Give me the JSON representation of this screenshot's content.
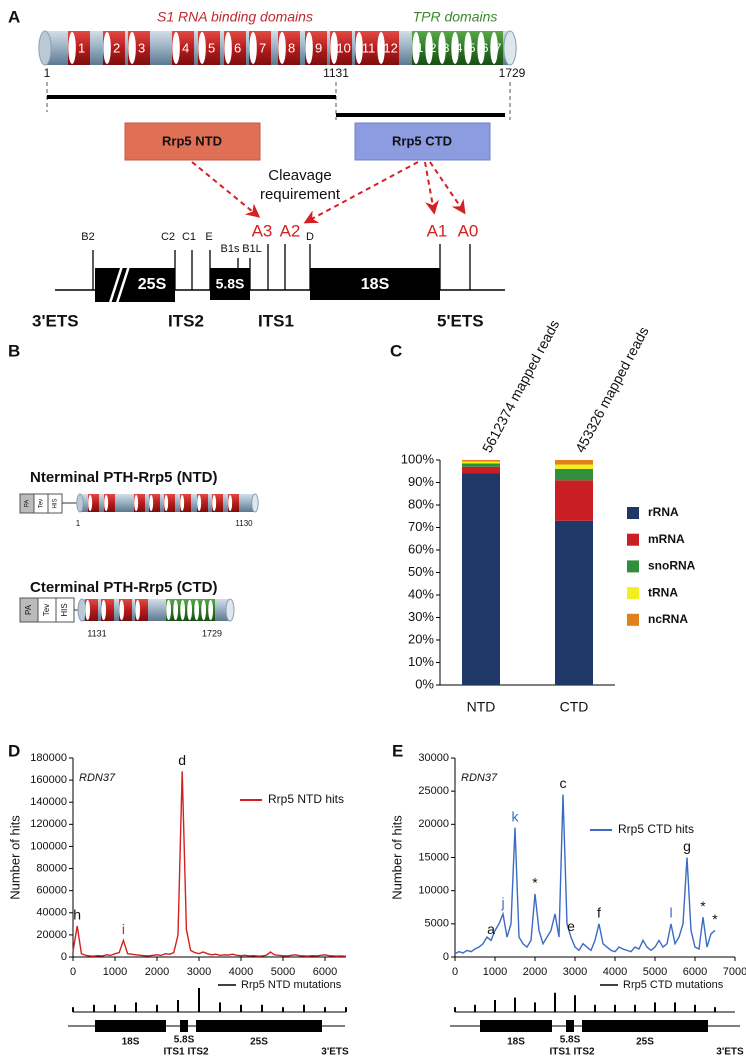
{
  "panel_labels": [
    "A",
    "B",
    "C",
    "D",
    "E"
  ],
  "domain_diagram": {
    "s1_title": "S1 RNA binding domains",
    "tpr_title": "TPR domains",
    "s1_numbers": [
      "1",
      "2",
      "3",
      "4",
      "5",
      "6",
      "7",
      "8",
      "9",
      "10",
      "11",
      "12"
    ],
    "tpr_numbers": [
      "1",
      "2",
      "3",
      "4",
      "5",
      "6",
      "7"
    ],
    "positions": [
      "1",
      "1131",
      "1729"
    ]
  },
  "cleavage": {
    "ntd_box": "Rrp5 NTD",
    "ctd_box": "Rrp5 CTD",
    "requirement": [
      "Cleavage",
      "requirement"
    ],
    "sites": [
      "A3",
      "A2",
      "A1",
      "A0"
    ]
  },
  "rrna_map": {
    "sites": [
      "B2",
      "C2",
      "C1",
      "E",
      "B1s",
      "B1L",
      "D"
    ],
    "blocks": [
      "25S",
      "5.8S",
      "18S"
    ],
    "regions": [
      "3'ETS",
      "ITS2",
      "ITS1",
      "5'ETS"
    ]
  },
  "constructs": {
    "ntd_title": "Nterminal PTH-Rrp5 (NTD)",
    "ctd_title": "Cterminal PTH-Rrp5 (CTD)",
    "tags": [
      "PA",
      "Tev",
      "HIS"
    ],
    "ntd_range": [
      "1",
      "1130"
    ],
    "ctd_range": [
      "1131",
      "1729"
    ]
  },
  "chart_data": [
    {
      "type": "bar",
      "stacked": true,
      "categories": [
        "NTD",
        "CTD"
      ],
      "category_notes": [
        "5612374 mapped reads",
        "453326 mapped reads"
      ],
      "series": [
        {
          "name": "rRNA",
          "color": "#1f3868",
          "values": [
            94,
            73
          ]
        },
        {
          "name": "mRNA",
          "color": "#c81e24",
          "values": [
            3,
            18
          ]
        },
        {
          "name": "snoRNA",
          "color": "#2f8f3c",
          "values": [
            1.5,
            5
          ]
        },
        {
          "name": "tRNA",
          "color": "#f0f020",
          "values": [
            0.8,
            2
          ]
        },
        {
          "name": "ncRNA",
          "color": "#e2801f",
          "values": [
            0.7,
            2
          ]
        }
      ],
      "ylim": [
        0,
        100
      ],
      "yticks": [
        {
          "value": 0,
          "label": "0%"
        },
        {
          "value": 10,
          "label": "10%"
        },
        {
          "value": 20,
          "label": "20%"
        },
        {
          "value": 30,
          "label": "30%"
        },
        {
          "value": 40,
          "label": "40%"
        },
        {
          "value": 50,
          "label": "50%"
        },
        {
          "value": 60,
          "label": "60%"
        },
        {
          "value": 70,
          "label": "70%"
        },
        {
          "value": 80,
          "label": "80%"
        },
        {
          "value": 90,
          "label": "90%"
        },
        {
          "value": 100,
          "label": "100%"
        }
      ]
    },
    {
      "type": "line",
      "subtitle": "RDN37",
      "y_label": "Number of hits",
      "x": [
        0,
        100,
        200,
        300,
        400,
        500,
        600,
        700,
        800,
        900,
        1000,
        1100,
        1200,
        1300,
        1400,
        1500,
        1600,
        1700,
        1800,
        1900,
        2000,
        2100,
        2200,
        2300,
        2400,
        2500,
        2600,
        2700,
        2800,
        2900,
        3000,
        3100,
        3200,
        3300,
        3400,
        3500,
        3600,
        3700,
        3800,
        3900,
        4000,
        4100,
        4200,
        4300,
        4400,
        4500,
        4600,
        4700,
        4800,
        4900,
        5000,
        5100,
        5200,
        5300,
        5400,
        5500,
        5600,
        5700,
        5800,
        5900,
        6000,
        6100,
        6200,
        6300,
        6400,
        6500
      ],
      "series": [
        {
          "name": "Rrp5 NTD hits",
          "color": "#d42020",
          "values": [
            5000,
            28000,
            3000,
            1500,
            1000,
            800,
            1200,
            1000,
            2000,
            1500,
            3000,
            4000,
            15000,
            3000,
            2500,
            2000,
            1500,
            1200,
            1000,
            1500,
            2000,
            1500,
            3000,
            2500,
            4000,
            20000,
            168000,
            25000,
            6000,
            4000,
            3000,
            4500,
            3000,
            2000,
            2500,
            1500,
            2000,
            1800,
            2500,
            1500,
            1200,
            1500,
            1000,
            1200,
            800,
            1000,
            1500,
            4500,
            2000,
            1500,
            1200,
            1000,
            1500,
            2000,
            1200,
            1000,
            800,
            1200,
            1000,
            1500,
            2000,
            1200,
            1000,
            800,
            1000,
            600
          ]
        }
      ],
      "xlim": [
        0,
        6500
      ],
      "xticks": [
        0,
        1000,
        2000,
        3000,
        4000,
        5000,
        6000
      ],
      "ylim": [
        0,
        180000
      ],
      "yticks": [
        0,
        20000,
        40000,
        60000,
        80000,
        100000,
        120000,
        140000,
        160000,
        180000
      ],
      "annotations": [
        "h",
        "i",
        "d"
      ],
      "mutations": {
        "name": "Rrp5 NTD mutations",
        "color": "#000000",
        "x": [
          0,
          500,
          1000,
          1500,
          2000,
          2500,
          3000,
          3500,
          4000,
          4500,
          5000,
          5500,
          6000,
          6500
        ],
        "values": [
          2,
          3,
          3,
          4,
          3,
          5,
          10,
          4,
          3,
          3,
          2,
          3,
          2,
          2
        ]
      },
      "gene_map": [
        "18S",
        "5.8S",
        "ITS1",
        "ITS2",
        "25S",
        "3'ETS"
      ]
    },
    {
      "type": "line",
      "subtitle": "RDN37",
      "y_label": "Number of hits",
      "x": [
        0,
        100,
        200,
        300,
        400,
        500,
        600,
        700,
        800,
        900,
        1000,
        1100,
        1200,
        1300,
        1400,
        1500,
        1600,
        1700,
        1800,
        1900,
        2000,
        2100,
        2200,
        2300,
        2400,
        2500,
        2600,
        2700,
        2800,
        2900,
        3000,
        3100,
        3200,
        3300,
        3400,
        3500,
        3600,
        3700,
        3800,
        3900,
        4000,
        4100,
        4200,
        4300,
        4400,
        4500,
        4600,
        4700,
        4800,
        4900,
        5000,
        5100,
        5200,
        5300,
        5400,
        5500,
        5600,
        5700,
        5800,
        5900,
        6000,
        6100,
        6200,
        6300,
        6400,
        6500
      ],
      "series": [
        {
          "name": "Rrp5 CTD hits",
          "color": "#3b6bc4",
          "values": [
            500,
            800,
            600,
            1000,
            800,
            1200,
            1500,
            2000,
            3000,
            2500,
            4000,
            5000,
            6500,
            3000,
            5000,
            19500,
            3000,
            2000,
            1500,
            2500,
            9500,
            4000,
            2000,
            3000,
            4000,
            6500,
            3000,
            24500,
            5000,
            3000,
            1500,
            1000,
            2000,
            1500,
            1000,
            2500,
            5000,
            2000,
            1500,
            1000,
            800,
            1500,
            1200,
            1000,
            800,
            1500,
            1200,
            2500,
            1500,
            1000,
            1500,
            2500,
            1500,
            2000,
            5000,
            2000,
            3000,
            5000,
            15000,
            4000,
            1500,
            1200,
            6000,
            1500,
            3500,
            4000
          ]
        }
      ],
      "xlim": [
        0,
        7000
      ],
      "xticks": [
        0,
        1000,
        2000,
        3000,
        4000,
        5000,
        6000,
        7000
      ],
      "ylim": [
        0,
        30000
      ],
      "yticks": [
        0,
        5000,
        10000,
        15000,
        20000,
        25000,
        30000
      ],
      "annotations": [
        "a",
        "j",
        "k",
        "*",
        "c",
        "e",
        "f",
        "l",
        "g",
        "*",
        "*"
      ],
      "mutations": {
        "name": "Rrp5 CTD mutations",
        "color": "#000000",
        "x": [
          0,
          500,
          1000,
          1500,
          2000,
          2500,
          3000,
          3500,
          4000,
          4500,
          5000,
          5500,
          6000,
          6500
        ],
        "values": [
          2,
          3,
          5,
          6,
          4,
          8,
          7,
          3,
          3,
          3,
          4,
          4,
          3,
          2
        ]
      },
      "gene_map": [
        "18S",
        "5.8S",
        "ITS1",
        "ITS2",
        "25S",
        "3'ETS"
      ]
    }
  ]
}
